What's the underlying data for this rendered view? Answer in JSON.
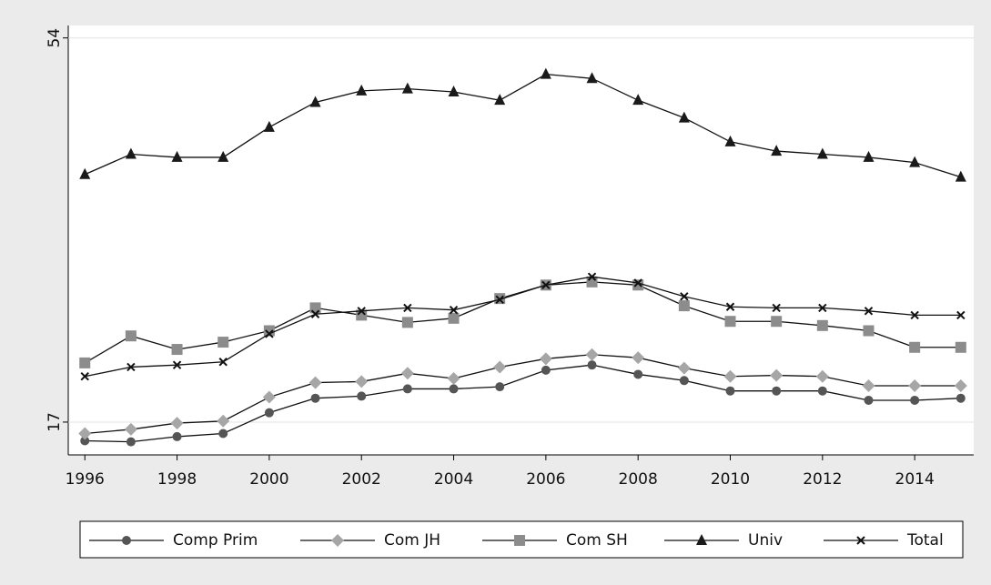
{
  "chart_data": {
    "type": "line",
    "x": [
      1996,
      1997,
      1998,
      1999,
      2000,
      2001,
      2002,
      2003,
      2004,
      2005,
      2006,
      2007,
      2008,
      2009,
      2010,
      2011,
      2012,
      2013,
      2014,
      2015
    ],
    "series": [
      {
        "name": "Comp Prim",
        "color": "#555555",
        "marker": "circle",
        "values": [
          15.2,
          15.1,
          15.6,
          15.9,
          17.9,
          19.3,
          19.5,
          20.2,
          20.2,
          20.4,
          22.0,
          22.5,
          21.6,
          21.0,
          20.0,
          20.0,
          20.0,
          19.1,
          19.1,
          19.3
        ]
      },
      {
        "name": "Com JH",
        "color": "#a6a6a6",
        "marker": "diamond",
        "values": [
          15.9,
          16.3,
          16.9,
          17.1,
          19.4,
          20.8,
          20.9,
          21.7,
          21.2,
          22.3,
          23.1,
          23.5,
          23.2,
          22.2,
          21.4,
          21.5,
          21.4,
          20.5,
          20.5,
          20.5
        ]
      },
      {
        "name": "Com SH",
        "color": "#8c8c8c",
        "marker": "square",
        "values": [
          22.7,
          25.3,
          24.0,
          24.7,
          25.8,
          28.0,
          27.3,
          26.6,
          27.0,
          28.9,
          30.2,
          30.5,
          30.2,
          28.2,
          26.7,
          26.7,
          26.3,
          25.8,
          24.2,
          24.2
        ]
      },
      {
        "name": "Univ",
        "color": "#1a1a1a",
        "marker": "triangle",
        "values": [
          40.85,
          42.8,
          42.5,
          42.5,
          45.4,
          47.8,
          48.9,
          49.1,
          48.8,
          48.0,
          50.5,
          50.1,
          48.0,
          46.3,
          44.0,
          43.1,
          42.8,
          42.5,
          42.0,
          40.6
        ]
      },
      {
        "name": "Total",
        "color": "#111111",
        "marker": "x",
        "values": [
          21.4,
          22.3,
          22.5,
          22.8,
          25.5,
          27.4,
          27.7,
          28.0,
          27.8,
          28.8,
          30.2,
          31.0,
          30.4,
          29.1,
          28.1,
          28.0,
          28.0,
          27.7,
          27.3,
          27.3
        ]
      }
    ],
    "xlim": [
      1995.64,
      2015.28
    ],
    "xticks": [
      1996,
      1998,
      2000,
      2002,
      2004,
      2006,
      2008,
      2010,
      2012,
      2014
    ],
    "ylim": [
      13.84,
      55.2
    ],
    "yticks": [
      17,
      54
    ],
    "grid": true,
    "legend": "bottom"
  }
}
